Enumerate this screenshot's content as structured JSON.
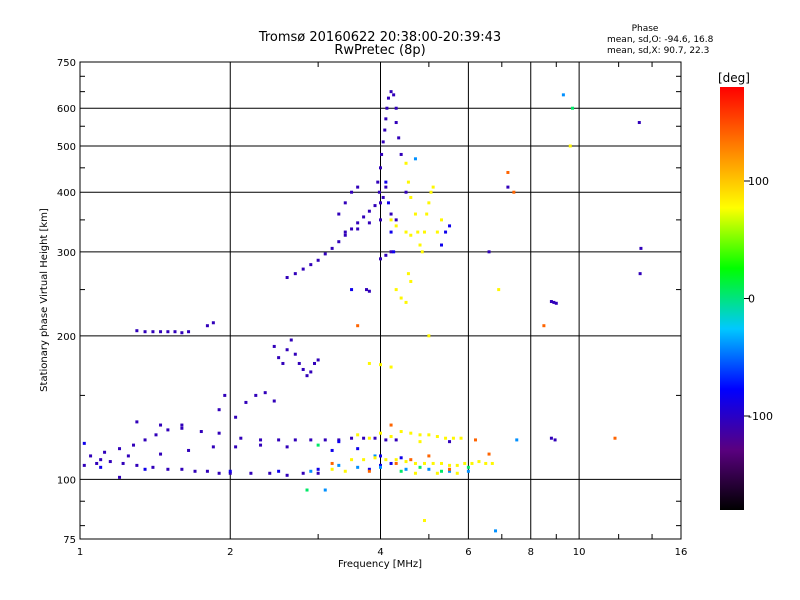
{
  "chart_data": {
    "type": "scatter",
    "title": "Tromsø 20160622 20:38:00-20:39:43",
    "subtitle": "RwPretec (8p)",
    "xlabel": "Frequency [MHz]",
    "ylabel": "Stationary phase Virtual Height [km]",
    "x_scale": "log",
    "y_scale": "log",
    "xlim": [
      1,
      16
    ],
    "ylim": [
      75,
      750
    ],
    "x_ticks": [
      1,
      2,
      4,
      6,
      8,
      10,
      16
    ],
    "x_tick_labels": [
      "1",
      "2",
      "4",
      "6",
      "8",
      "10",
      "16"
    ],
    "y_ticks": [
      75,
      100,
      200,
      300,
      400,
      500,
      600,
      750
    ],
    "y_tick_labels": [
      "75",
      "100",
      "200",
      "300",
      "400",
      "500",
      "600",
      "750"
    ],
    "grid": true,
    "phase_info": {
      "title": "Phase",
      "line_o": "mean, sd,O: -94.6, 16.8",
      "line_x": "mean, sd,X:  90.7, 22.3"
    },
    "colorbar": {
      "label": "[deg]",
      "range": [
        -180,
        180
      ],
      "ticks": [
        100,
        0,
        -100
      ],
      "tick_labels": [
        "100",
        "0",
        "-100"
      ],
      "stops": [
        "#000000",
        "#5a0080",
        "#0000ff",
        "#00c8ff",
        "#00ff00",
        "#ffff00",
        "#ff8000",
        "#ff0000"
      ]
    },
    "series": [
      {
        "phase": -105,
        "points": [
          [
            1.02,
            107
          ],
          [
            1.08,
            108
          ],
          [
            1.15,
            109
          ],
          [
            1.22,
            108
          ],
          [
            1.3,
            107
          ],
          [
            1.4,
            106
          ],
          [
            1.5,
            105
          ],
          [
            1.6,
            105
          ],
          [
            1.7,
            104
          ],
          [
            1.8,
            104
          ],
          [
            1.9,
            103
          ],
          [
            2.0,
            103
          ],
          [
            2.2,
            103
          ],
          [
            2.4,
            103
          ],
          [
            2.6,
            102
          ],
          [
            2.8,
            103
          ],
          [
            3.0,
            103
          ],
          [
            1.05,
            112
          ],
          [
            1.12,
            114
          ],
          [
            1.2,
            116
          ],
          [
            1.28,
            118
          ],
          [
            1.35,
            121
          ],
          [
            1.42,
            124
          ],
          [
            1.5,
            127
          ],
          [
            1.6,
            130
          ],
          [
            1.1,
            110
          ],
          [
            1.25,
            112
          ],
          [
            1.45,
            113
          ],
          [
            1.65,
            115
          ],
          [
            1.85,
            117
          ],
          [
            2.05,
            117
          ],
          [
            2.3,
            118
          ],
          [
            2.6,
            117
          ],
          [
            1.3,
            132
          ],
          [
            1.45,
            130
          ],
          [
            1.6,
            128
          ],
          [
            1.75,
            126
          ],
          [
            1.9,
            125
          ],
          [
            2.1,
            122
          ],
          [
            2.3,
            121
          ],
          [
            2.5,
            121
          ],
          [
            2.7,
            121
          ],
          [
            2.9,
            121
          ],
          [
            3.1,
            121
          ],
          [
            3.3,
            121
          ],
          [
            3.5,
            122
          ],
          [
            3.7,
            122
          ],
          [
            3.9,
            122
          ],
          [
            4.1,
            121
          ],
          [
            4.3,
            121
          ],
          [
            1.9,
            140
          ],
          [
            1.95,
            150
          ],
          [
            2.05,
            135
          ],
          [
            2.15,
            145
          ],
          [
            2.25,
            150
          ],
          [
            2.35,
            152
          ],
          [
            2.45,
            146
          ],
          [
            1.3,
            205
          ],
          [
            1.35,
            204
          ],
          [
            1.4,
            204
          ],
          [
            1.45,
            204
          ],
          [
            1.5,
            204
          ],
          [
            1.55,
            204
          ],
          [
            1.6,
            203
          ],
          [
            1.65,
            204
          ],
          [
            1.8,
            210
          ],
          [
            1.85,
            213
          ],
          [
            2.45,
            190
          ],
          [
            2.5,
            180
          ],
          [
            2.55,
            175
          ],
          [
            2.6,
            187
          ],
          [
            2.65,
            196
          ],
          [
            2.7,
            183
          ],
          [
            2.75,
            175
          ],
          [
            2.8,
            170
          ],
          [
            2.85,
            165
          ],
          [
            2.9,
            168
          ],
          [
            2.95,
            175
          ],
          [
            3.0,
            178
          ],
          [
            2.6,
            265
          ],
          [
            2.7,
            270
          ],
          [
            2.8,
            276
          ],
          [
            2.9,
            282
          ],
          [
            3.0,
            288
          ],
          [
            3.1,
            297
          ],
          [
            3.2,
            305
          ],
          [
            3.3,
            315
          ],
          [
            3.4,
            325
          ],
          [
            3.5,
            335
          ],
          [
            3.6,
            345
          ],
          [
            3.7,
            355
          ],
          [
            3.8,
            365
          ],
          [
            3.9,
            375
          ],
          [
            3.3,
            360
          ],
          [
            3.4,
            380
          ],
          [
            3.5,
            400
          ],
          [
            3.6,
            410
          ],
          [
            3.4,
            330
          ],
          [
            3.6,
            335
          ],
          [
            3.8,
            345
          ],
          [
            4.0,
            350
          ],
          [
            3.95,
            420
          ],
          [
            4.0,
            450
          ],
          [
            4.02,
            480
          ],
          [
            4.05,
            510
          ],
          [
            4.08,
            540
          ],
          [
            4.1,
            570
          ],
          [
            4.12,
            600
          ],
          [
            4.15,
            630
          ],
          [
            4.2,
            650
          ],
          [
            4.25,
            640
          ],
          [
            4.3,
            600
          ],
          [
            4.3,
            560
          ],
          [
            4.35,
            520
          ],
          [
            3.98,
            400
          ],
          [
            4.0,
            380
          ],
          [
            4.05,
            390
          ],
          [
            4.1,
            410
          ],
          [
            4.0,
            290
          ],
          [
            4.1,
            295
          ],
          [
            4.2,
            300
          ],
          [
            4.4,
            480
          ],
          [
            4.3,
            350
          ],
          [
            4.5,
            400
          ],
          [
            3.75,
            250
          ],
          [
            3.8,
            248
          ],
          [
            8.8,
            236
          ],
          [
            8.9,
            235
          ],
          [
            9.0,
            234
          ],
          [
            8.95,
            121
          ],
          [
            8.8,
            122
          ],
          [
            13.2,
            560
          ],
          [
            13.3,
            305
          ],
          [
            13.25,
            270
          ],
          [
            6.6,
            300
          ],
          [
            7.2,
            410
          ],
          [
            5.5,
            120
          ],
          [
            4.2,
            360
          ],
          [
            1.2,
            101
          ]
        ]
      },
      {
        "phase": -85,
        "points": [
          [
            1.1,
            106
          ],
          [
            1.35,
            105
          ],
          [
            2.0,
            104
          ],
          [
            2.5,
            104
          ],
          [
            3.0,
            105
          ],
          [
            3.8,
            105
          ],
          [
            4.0,
            107
          ],
          [
            4.2,
            108
          ],
          [
            3.2,
            115
          ],
          [
            3.6,
            116
          ],
          [
            4.1,
            420
          ],
          [
            4.15,
            380
          ],
          [
            4.2,
            330
          ],
          [
            4.25,
            300
          ],
          [
            5.3,
            310
          ],
          [
            5.4,
            330
          ],
          [
            5.5,
            340
          ],
          [
            3.5,
            250
          ],
          [
            4.0,
            112
          ],
          [
            4.4,
            111
          ],
          [
            3.3,
            120
          ],
          [
            1.02,
            119
          ]
        ]
      },
      {
        "phase": -40,
        "points": [
          [
            3.3,
            107
          ],
          [
            3.6,
            106
          ],
          [
            4.0,
            106
          ],
          [
            4.5,
            105
          ],
          [
            5.0,
            105
          ],
          [
            5.5,
            104
          ],
          [
            6.0,
            104
          ],
          [
            2.9,
            104
          ],
          [
            4.7,
            470
          ],
          [
            7.5,
            121
          ],
          [
            3.9,
            112
          ],
          [
            3.1,
            95
          ],
          [
            6.8,
            78
          ],
          [
            9.3,
            640
          ]
        ]
      },
      {
        "phase": 80,
        "points": [
          [
            4.5,
            460
          ],
          [
            4.55,
            420
          ],
          [
            4.6,
            390
          ],
          [
            4.7,
            360
          ],
          [
            4.75,
            330
          ],
          [
            4.8,
            310
          ],
          [
            4.85,
            300
          ],
          [
            4.9,
            330
          ],
          [
            4.95,
            360
          ],
          [
            5.0,
            380
          ],
          [
            5.05,
            400
          ],
          [
            5.1,
            410
          ],
          [
            4.2,
            350
          ],
          [
            4.3,
            340
          ],
          [
            4.5,
            330
          ],
          [
            4.6,
            325
          ],
          [
            4.3,
            250
          ],
          [
            4.4,
            240
          ],
          [
            4.5,
            235
          ],
          [
            4.6,
            260
          ],
          [
            4.55,
            270
          ],
          [
            4.0,
            125
          ],
          [
            4.2,
            123
          ],
          [
            4.4,
            126
          ],
          [
            4.6,
            125
          ],
          [
            4.8,
            124
          ],
          [
            5.0,
            124
          ],
          [
            5.2,
            123
          ],
          [
            5.4,
            122
          ],
          [
            5.6,
            122
          ],
          [
            5.8,
            122
          ],
          [
            3.6,
            124
          ],
          [
            3.8,
            122
          ],
          [
            3.5,
            110
          ],
          [
            3.7,
            110
          ],
          [
            3.9,
            111
          ],
          [
            4.1,
            110
          ],
          [
            4.3,
            110
          ],
          [
            4.5,
            109
          ],
          [
            4.7,
            108
          ],
          [
            4.9,
            108
          ],
          [
            5.1,
            108
          ],
          [
            5.3,
            108
          ],
          [
            5.5,
            107
          ],
          [
            5.7,
            107
          ],
          [
            5.9,
            108
          ],
          [
            6.1,
            108
          ],
          [
            6.3,
            109
          ],
          [
            6.5,
            108
          ],
          [
            6.7,
            108
          ],
          [
            3.2,
            105
          ],
          [
            3.4,
            104
          ],
          [
            4.7,
            103
          ],
          [
            5.2,
            103
          ],
          [
            5.7,
            103
          ],
          [
            3.8,
            175
          ],
          [
            4.0,
            174
          ],
          [
            4.2,
            172
          ],
          [
            5.2,
            330
          ],
          [
            5.3,
            350
          ],
          [
            5.0,
            200
          ],
          [
            9.6,
            500
          ],
          [
            6.9,
            250
          ],
          [
            4.8,
            120
          ],
          [
            4.9,
            82
          ]
        ]
      },
      {
        "phase": 140,
        "points": [
          [
            4.3,
            108
          ],
          [
            4.6,
            110
          ],
          [
            5.0,
            112
          ],
          [
            5.5,
            105
          ],
          [
            3.8,
            104
          ],
          [
            3.2,
            108
          ],
          [
            7.2,
            440
          ],
          [
            7.4,
            400
          ],
          [
            3.6,
            210
          ],
          [
            4.2,
            130
          ],
          [
            6.2,
            121
          ],
          [
            11.8,
            122
          ],
          [
            8.5,
            210
          ],
          [
            6.6,
            113
          ]
        ]
      },
      {
        "phase": 5,
        "points": [
          [
            4.8,
            106
          ],
          [
            5.3,
            104
          ],
          [
            6.0,
            106
          ],
          [
            3.0,
            118
          ],
          [
            4.4,
            104
          ],
          [
            2.85,
            95
          ],
          [
            9.7,
            600
          ]
        ]
      }
    ]
  }
}
